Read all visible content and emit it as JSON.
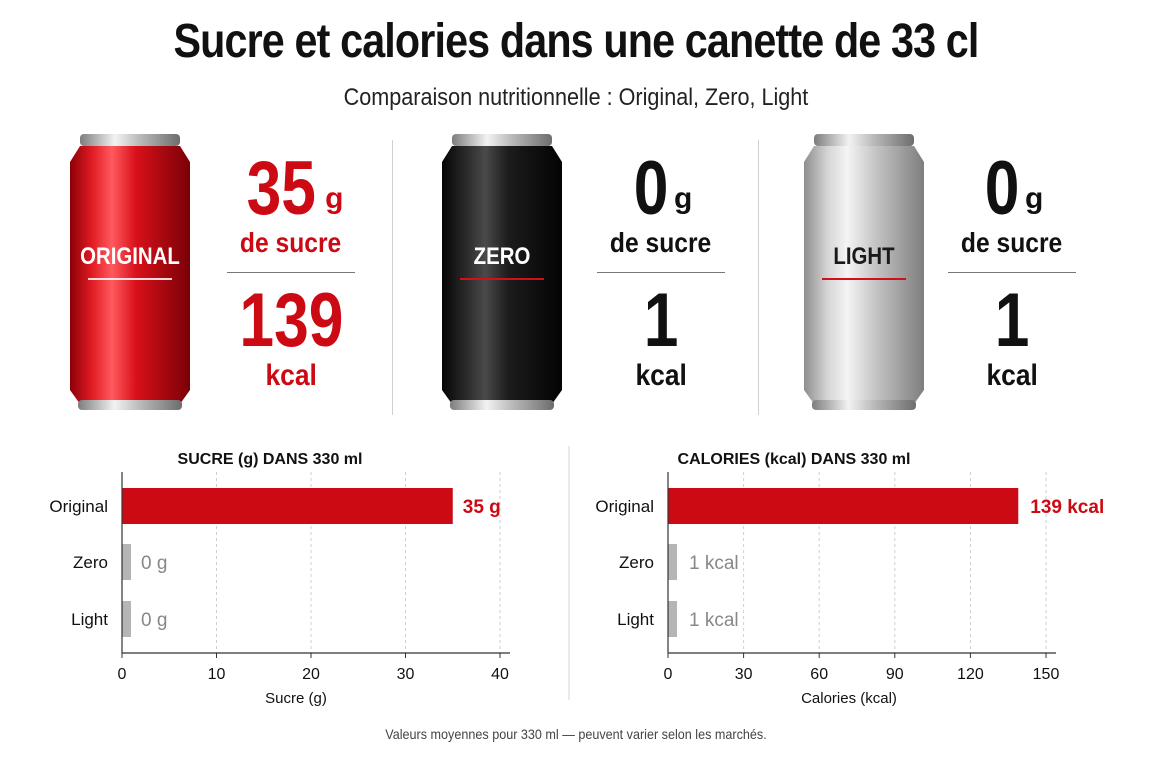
{
  "title": "Sucre et calories dans une canette de 33 cl",
  "subtitle": "Comparaison nutritionnelle : Original, Zero, Light",
  "colors": {
    "accent_red": "#cc0a14",
    "gray_bar": "#b5b5b5",
    "text_dark": "#111111"
  },
  "products": [
    {
      "can_label": "ORIGINAL",
      "can_color": "red",
      "sugar": "35",
      "sugar_unit": "g",
      "sugar_label": "de sucre",
      "kcal": "139",
      "kcal_unit": "kcal"
    },
    {
      "can_label": "ZERO",
      "can_color": "black",
      "sugar": "0",
      "sugar_unit": "g",
      "sugar_label": "de sucre",
      "kcal": "1",
      "kcal_unit": "kcal"
    },
    {
      "can_label": "LIGHT",
      "can_color": "silver",
      "sugar": "0",
      "sugar_unit": "g",
      "sugar_label": "de sucre",
      "kcal": "1",
      "kcal_unit": "kcal"
    }
  ],
  "chart_data": [
    {
      "type": "bar",
      "orientation": "horizontal",
      "title": "SUCRE (g) DANS 330 ml",
      "xlabel": "Sucre (g)",
      "categories": [
        "Original",
        "Zero",
        "Light"
      ],
      "values": [
        35,
        0,
        0
      ],
      "value_labels": [
        "35 g",
        "0 g",
        "0 g"
      ],
      "bar_colors": [
        "#cc0a14",
        "#b5b5b5",
        "#b5b5b5"
      ],
      "xlim": [
        0,
        40
      ],
      "xticks": [
        0,
        10,
        20,
        30,
        40
      ],
      "grid": true
    },
    {
      "type": "bar",
      "orientation": "horizontal",
      "title": "CALORIES (kcal) DANS 330 ml",
      "xlabel": "Calories (kcal)",
      "categories": [
        "Original",
        "Zero",
        "Light"
      ],
      "values": [
        139,
        1,
        1
      ],
      "value_labels": [
        "139 kcal",
        "1 kcal",
        "1 kcal"
      ],
      "bar_colors": [
        "#cc0a14",
        "#b5b5b5",
        "#b5b5b5"
      ],
      "xlim": [
        0,
        150
      ],
      "xticks": [
        0,
        30,
        60,
        90,
        120,
        150
      ],
      "grid": true
    }
  ],
  "footnote": "Valeurs moyennes pour 330 ml — peuvent varier selon les marchés."
}
